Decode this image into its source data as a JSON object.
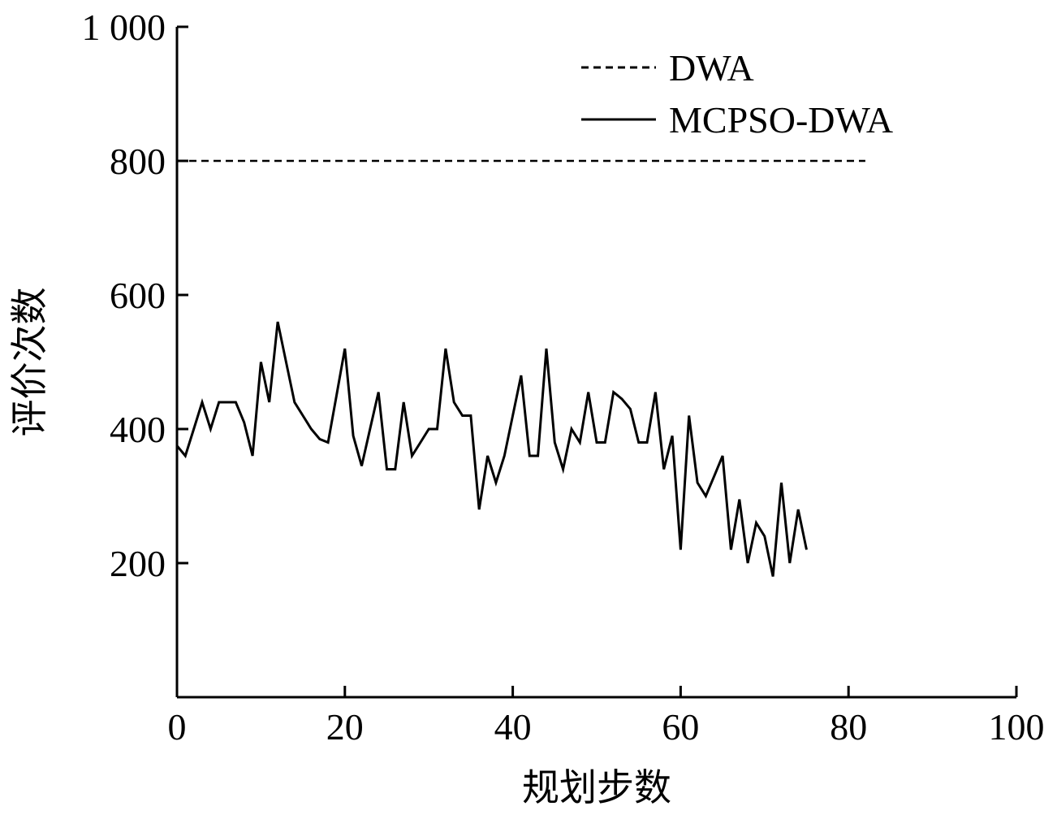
{
  "chart_data": {
    "type": "line",
    "title": "",
    "xlabel": "规划步数",
    "ylabel": "评价次数",
    "xlim": [
      0,
      100
    ],
    "ylim": [
      0,
      1000
    ],
    "x_ticks": [
      0,
      20,
      40,
      60,
      80,
      100
    ],
    "x_tick_labels": [
      "0",
      "20",
      "40",
      "60",
      "80",
      "100"
    ],
    "y_ticks": [
      200,
      400,
      600,
      800,
      1000
    ],
    "y_tick_labels": [
      "200",
      "400",
      "600",
      "800",
      "1 000"
    ],
    "grid": false,
    "legend_position": "top-right",
    "series": [
      {
        "name": "DWA",
        "style": "dashed",
        "color": "#000000",
        "x": [
          0,
          82
        ],
        "y": [
          800,
          800
        ]
      },
      {
        "name": "MCPSO-DWA",
        "style": "solid",
        "color": "#000000",
        "x": [
          0,
          1,
          2,
          3,
          4,
          5,
          6,
          7,
          8,
          9,
          10,
          11,
          12,
          13,
          14,
          15,
          16,
          17,
          18,
          19,
          20,
          21,
          22,
          23,
          24,
          25,
          26,
          27,
          28,
          29,
          30,
          31,
          32,
          33,
          34,
          35,
          36,
          37,
          38,
          39,
          40,
          41,
          42,
          43,
          44,
          45,
          46,
          47,
          48,
          49,
          50,
          51,
          52,
          53,
          54,
          55,
          56,
          57,
          58,
          59,
          60,
          61,
          62,
          63,
          64,
          65,
          66,
          67,
          68,
          69,
          70,
          71,
          72,
          73,
          74,
          75
        ],
        "y": [
          375,
          360,
          400,
          440,
          400,
          440,
          440,
          440,
          410,
          360,
          500,
          440,
          560,
          500,
          440,
          420,
          400,
          385,
          380,
          450,
          520,
          390,
          345,
          400,
          455,
          340,
          340,
          440,
          360,
          380,
          400,
          400,
          520,
          440,
          420,
          420,
          280,
          360,
          320,
          360,
          420,
          480,
          360,
          360,
          520,
          380,
          340,
          400,
          380,
          455,
          380,
          380,
          455,
          445,
          430,
          380,
          380,
          455,
          340,
          390,
          220,
          420,
          320,
          300,
          330,
          360,
          220,
          295,
          200,
          260,
          240,
          180,
          320,
          200,
          280,
          220
        ]
      }
    ]
  }
}
